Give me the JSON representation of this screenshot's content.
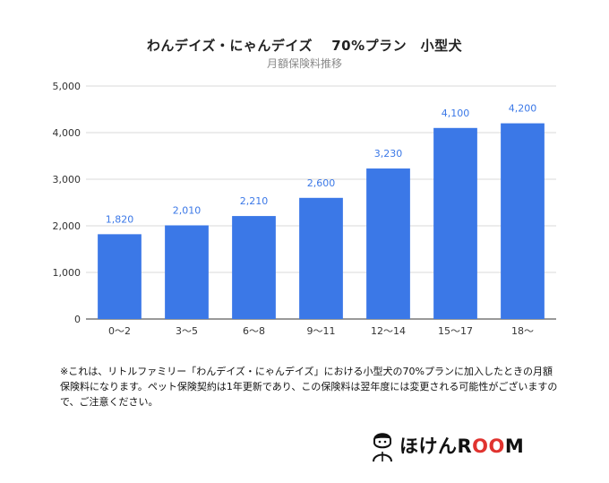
{
  "chart_data": {
    "type": "bar",
    "title": "わんデイズ・にゃんデイズ　 70%プラン　小型犬",
    "subtitle": "月額保険料推移",
    "categories": [
      "0〜2",
      "3〜5",
      "6〜8",
      "9〜11",
      "12〜14",
      "15〜17",
      "18〜"
    ],
    "values": [
      1820,
      2010,
      2210,
      2600,
      3230,
      4100,
      4200
    ],
    "value_labels": [
      "1,820",
      "2,010",
      "2,210",
      "2,600",
      "3,230",
      "4,100",
      "4,200"
    ],
    "yticks": [
      "0",
      "1,000",
      "2,000",
      "3,000",
      "4,000",
      "5,000"
    ],
    "ylim": [
      0,
      5000
    ],
    "grid": true,
    "bar_color": "#3b78e7"
  },
  "note": "※これは、リトルファミリー「わんデイズ・にゃんデイズ」における小型犬の70%プランに加入したときの月額保険料になります。ペット保険契約は1年更新であり、この保険料は翌年度には変更される可能性がございますので、ご注意ください。",
  "logo": {
    "text": "ほけんROOM",
    "icon": "person-icon",
    "accent_color": "#e0332f"
  }
}
